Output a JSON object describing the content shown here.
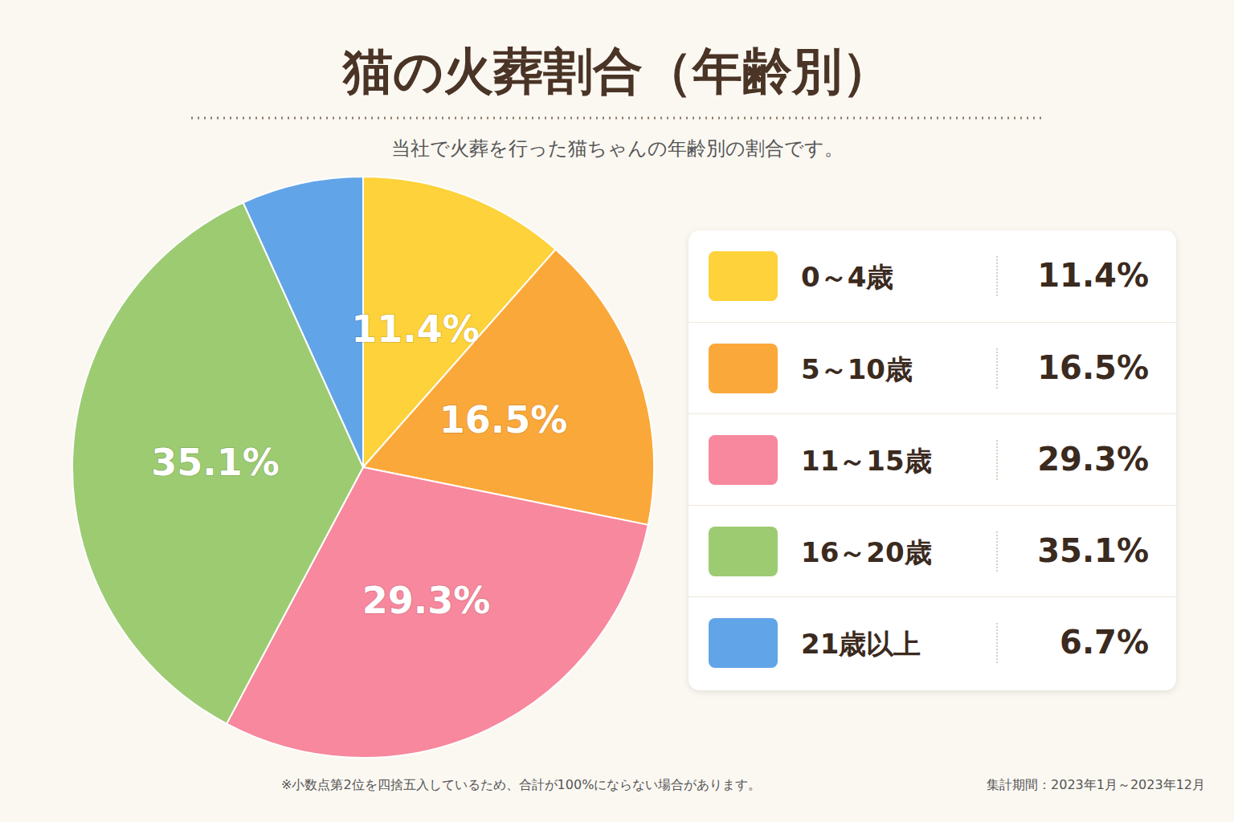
{
  "chart_data": {
    "type": "pie",
    "title": "猫の火葬割合（年齢別）",
    "subtitle": "当社で火葬を行った猫ちゃんの年齢別の割合です。",
    "categories": [
      "0～4歳",
      "5～10歳",
      "11～15歳",
      "16～20歳",
      "21歳以上"
    ],
    "values": [
      11.4,
      16.5,
      29.3,
      35.1,
      6.7
    ],
    "value_labels": [
      "11.4%",
      "16.5%",
      "29.3%",
      "35.1%",
      "6.7%"
    ],
    "colors": [
      "#fdd23a",
      "#fba83a",
      "#f7889d",
      "#9dcb72",
      "#62a4e8"
    ],
    "data_labels": true,
    "legend": "right",
    "annotations": [
      "※小数点第2位を四捨五入しているため、合計が100%にならない場合があります。",
      "集計期間：2023年1月～2023年12月"
    ]
  }
}
